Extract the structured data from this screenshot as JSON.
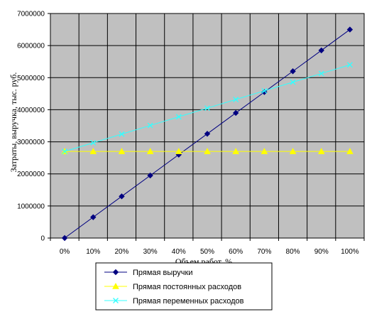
{
  "chart_data": {
    "type": "line",
    "xlabel": "Объем работ, %",
    "ylabel": "Затраты, выручка, тыс. руб.",
    "categories": [
      "0%",
      "10%",
      "20%",
      "30%",
      "40%",
      "50%",
      "60%",
      "70%",
      "80%",
      "90%",
      "100%"
    ],
    "ylim": [
      0,
      7000000
    ],
    "yticks": [
      0,
      1000000,
      2000000,
      3000000,
      4000000,
      5000000,
      6000000,
      7000000
    ],
    "ytick_labels": [
      "0",
      "1000000",
      "2000000",
      "3000000",
      "4000000",
      "5000000",
      "6000000",
      "7000000"
    ],
    "grid": true,
    "legend_position": "bottom",
    "plot_background": "#c0c0c0",
    "series": [
      {
        "name": "Прямая выручки",
        "color": "#000080",
        "marker": "diamond",
        "values": [
          0,
          650000,
          1300000,
          1950000,
          2600000,
          3250000,
          3900000,
          4550000,
          5200000,
          5850000,
          6500000
        ]
      },
      {
        "name": "Прямая постоянных расходов",
        "color": "#ffff00",
        "marker": "triangle",
        "values": [
          2700000,
          2700000,
          2700000,
          2700000,
          2700000,
          2700000,
          2700000,
          2700000,
          2700000,
          2700000,
          2700000
        ]
      },
      {
        "name": "Прямая переменных расходов",
        "color": "#33ffff",
        "marker": "x",
        "values": [
          2700000,
          2970000,
          3240000,
          3510000,
          3780000,
          4050000,
          4320000,
          4590000,
          4860000,
          5130000,
          5400000
        ]
      }
    ]
  }
}
